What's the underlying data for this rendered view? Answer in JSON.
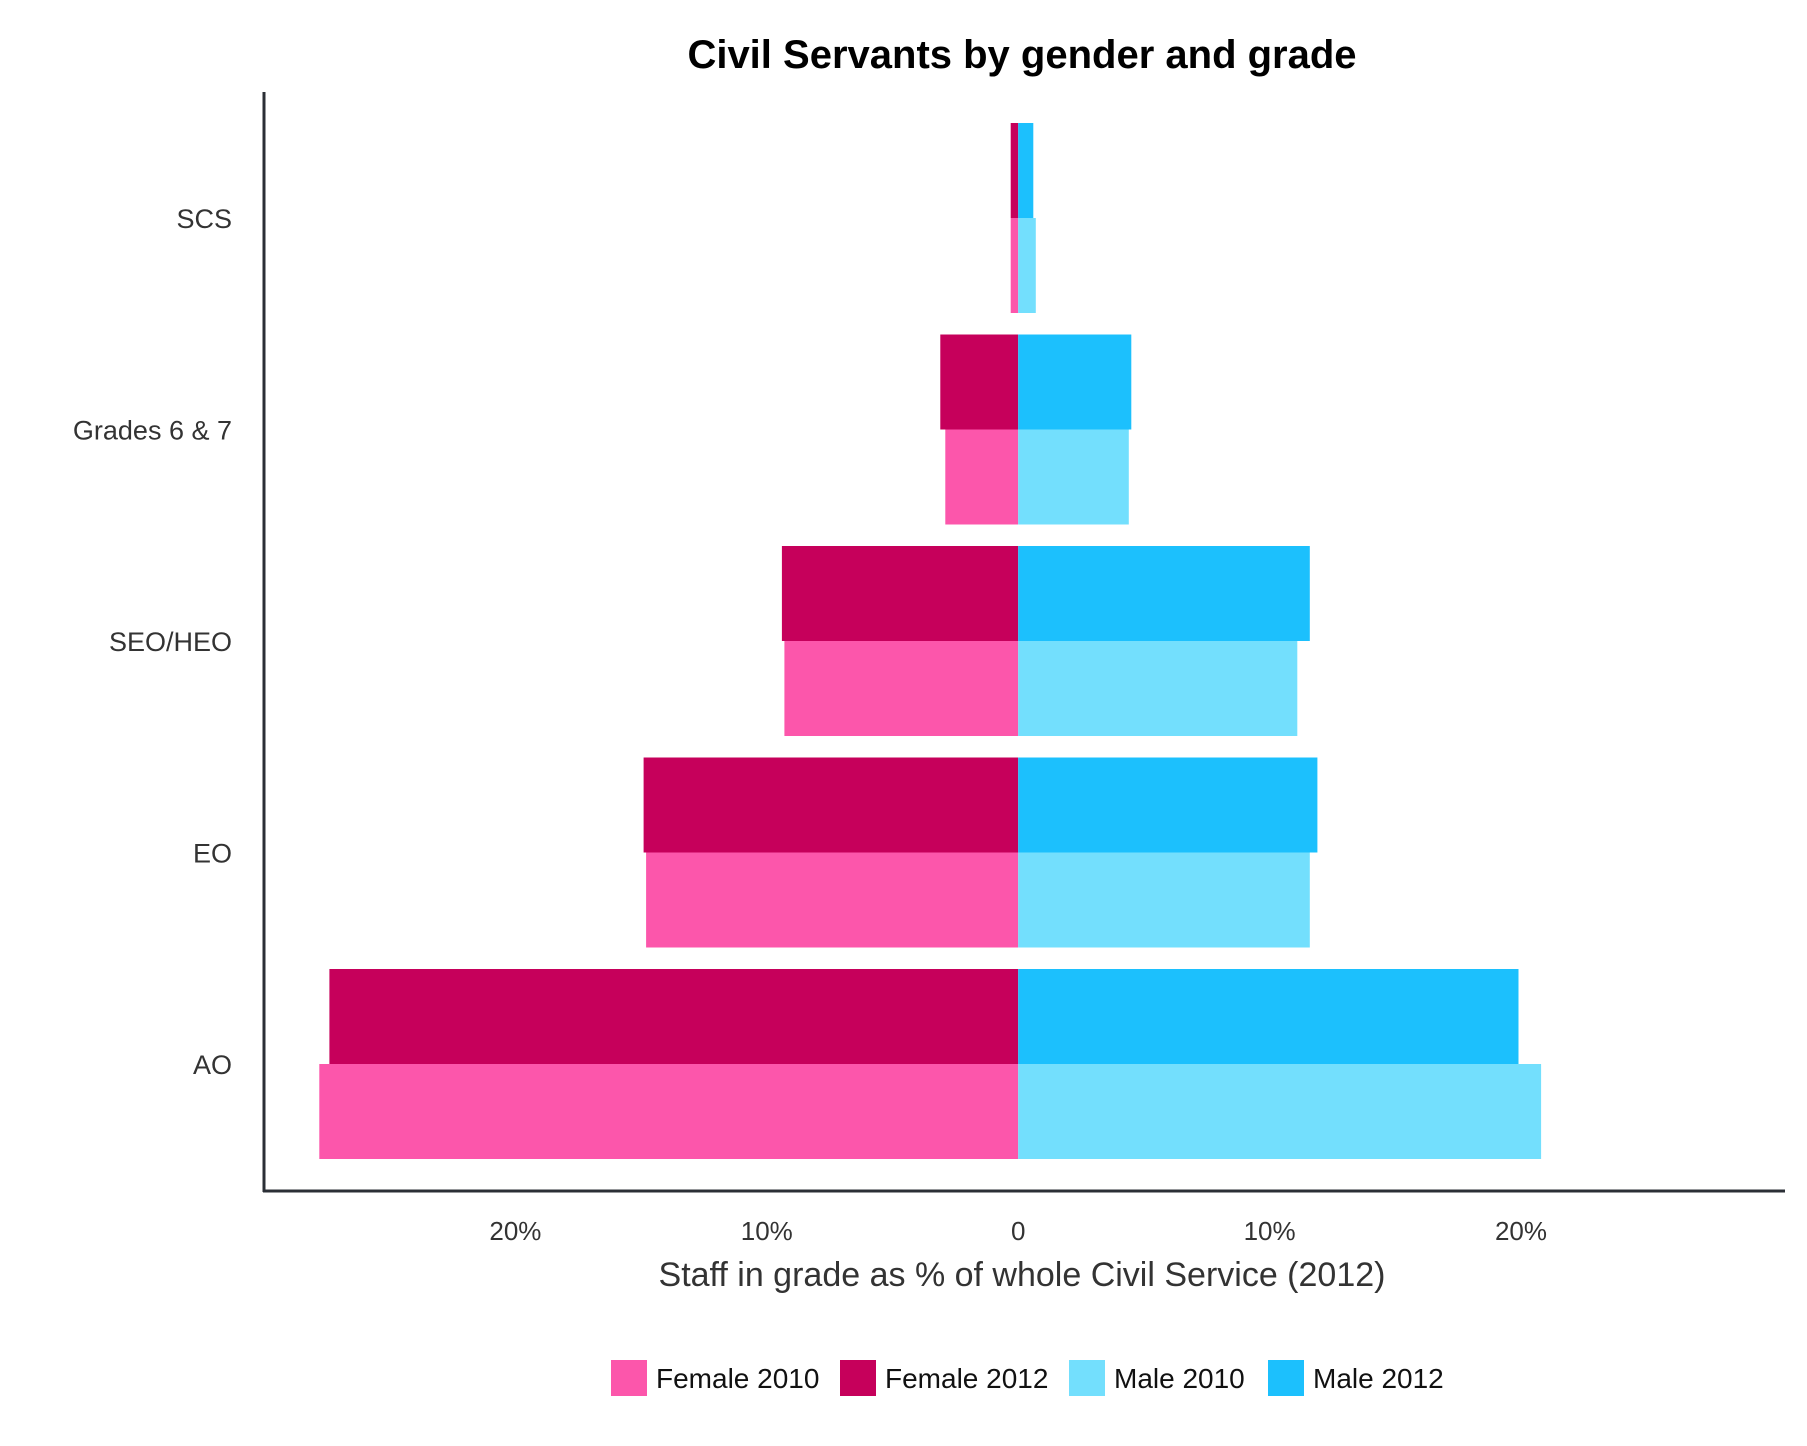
{
  "chart_data": {
    "type": "bar",
    "orientation": "horizontal",
    "layout": "population-pyramid",
    "title": "Civil Servants by gender and grade",
    "xlabel": "Staff in grade as % of whole Civil Service (2012)",
    "ylabel": "",
    "categories": [
      "SCS",
      "Grades 6 & 7",
      "SEO/HEO",
      "EO",
      "AO"
    ],
    "x_ticks": [
      {
        "value": -20,
        "label": "20%"
      },
      {
        "value": -10,
        "label": "10%"
      },
      {
        "value": 0,
        "label": "0"
      },
      {
        "value": 10,
        "label": "10%"
      },
      {
        "value": 20,
        "label": "20%"
      }
    ],
    "xlim": [
      -30,
      30.5
    ],
    "grid": false,
    "legend_position": "bottom-center",
    "series": [
      {
        "name": "Female 2010",
        "side": "left",
        "color": "#fc56ab",
        "values": [
          0.3,
          2.9,
          9.3,
          14.8,
          27.8
        ]
      },
      {
        "name": "Female 2012",
        "side": "left",
        "color": "#c6005b",
        "values": [
          0.3,
          3.1,
          9.4,
          14.9,
          27.4
        ]
      },
      {
        "name": "Male 2010",
        "side": "right",
        "color": "#73dffd",
        "values": [
          0.7,
          4.4,
          11.1,
          11.6,
          20.8
        ]
      },
      {
        "name": "Male 2012",
        "side": "right",
        "color": "#1cc0fd",
        "values": [
          0.6,
          4.5,
          11.6,
          11.9,
          19.9
        ]
      }
    ]
  }
}
